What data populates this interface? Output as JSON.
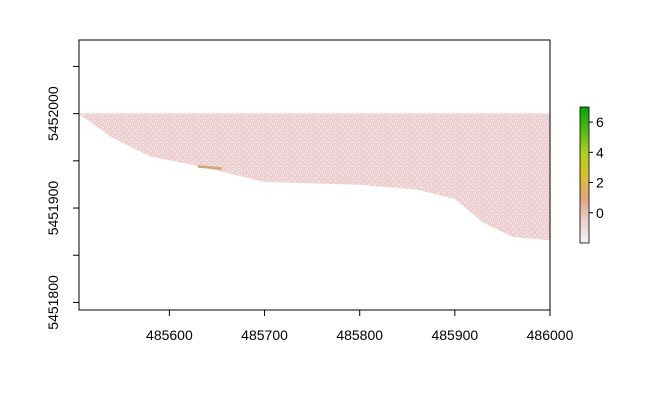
{
  "chart_data": {
    "type": "heatmap",
    "title": "",
    "xlabel": "",
    "ylabel": "",
    "xlim": [
      485505,
      486000
    ],
    "ylim": [
      5451792,
      5452078
    ],
    "x_ticks": [
      {
        "value": 485600,
        "label": "485600"
      },
      {
        "value": 485700,
        "label": "485700"
      },
      {
        "value": 485800,
        "label": "485800"
      },
      {
        "value": 485900,
        "label": "485900"
      },
      {
        "value": 486000,
        "label": "486000"
      }
    ],
    "y_ticks": [
      {
        "value": 5451800,
        "label": "5451800"
      },
      {
        "value": 5451850,
        "label": ""
      },
      {
        "value": 5451900,
        "label": "5451900"
      },
      {
        "value": 5451950,
        "label": ""
      },
      {
        "value": 5452000,
        "label": "5452000"
      },
      {
        "value": 5452050,
        "label": ""
      }
    ],
    "raster": {
      "top_y": 5452000,
      "left_x": 485505,
      "bottom_boundary": [
        {
          "x": 485505,
          "y": 5452000
        },
        {
          "x": 485540,
          "y": 5451975
        },
        {
          "x": 485580,
          "y": 5451955
        },
        {
          "x": 485630,
          "y": 5451945
        },
        {
          "x": 485700,
          "y": 5451928
        },
        {
          "x": 485800,
          "y": 5451925
        },
        {
          "x": 485860,
          "y": 5451920
        },
        {
          "x": 485900,
          "y": 5451910
        },
        {
          "x": 485930,
          "y": 5451885
        },
        {
          "x": 485960,
          "y": 5451870
        },
        {
          "x": 486000,
          "y": 5451866
        }
      ],
      "base_color": "#efcfcf",
      "highlight": {
        "x_range": [
          485630,
          485655
        ],
        "y": 5451944,
        "color": "#d9a070"
      }
    },
    "legend": {
      "position": "right",
      "min": -2,
      "max": 7,
      "ticks": [
        {
          "value": 0,
          "label": "0"
        },
        {
          "value": 2,
          "label": "2"
        },
        {
          "value": 4,
          "label": "4"
        },
        {
          "value": 6,
          "label": "6"
        }
      ],
      "colors": [
        "#f2f2f2",
        "#edcfcf",
        "#e2a37c",
        "#d9c030",
        "#a8d020",
        "#50b818",
        "#00a600"
      ]
    }
  }
}
